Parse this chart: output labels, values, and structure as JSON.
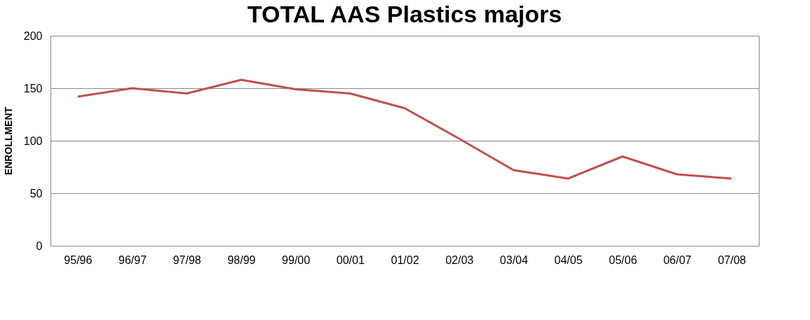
{
  "chart_data": {
    "type": "line",
    "title": "TOTAL AAS Plastics majors",
    "ylabel": "ENROLLMENT",
    "categories": [
      "95/96",
      "96/97",
      "97/98",
      "98/99",
      "99/00",
      "00/01",
      "01/02",
      "02/03",
      "03/04",
      "04/05",
      "05/06",
      "06/07",
      "07/08"
    ],
    "series": [
      {
        "color": "#c0504d",
        "values": [
          142,
          150,
          145,
          158,
          149,
          145,
          131,
          102,
          72,
          64,
          85,
          68,
          64
        ]
      }
    ],
    "ylim": [
      0,
      200
    ],
    "yticks": [
      0,
      50,
      100,
      150,
      200
    ],
    "grid": "y",
    "marker": "none",
    "line_style": "solid"
  }
}
